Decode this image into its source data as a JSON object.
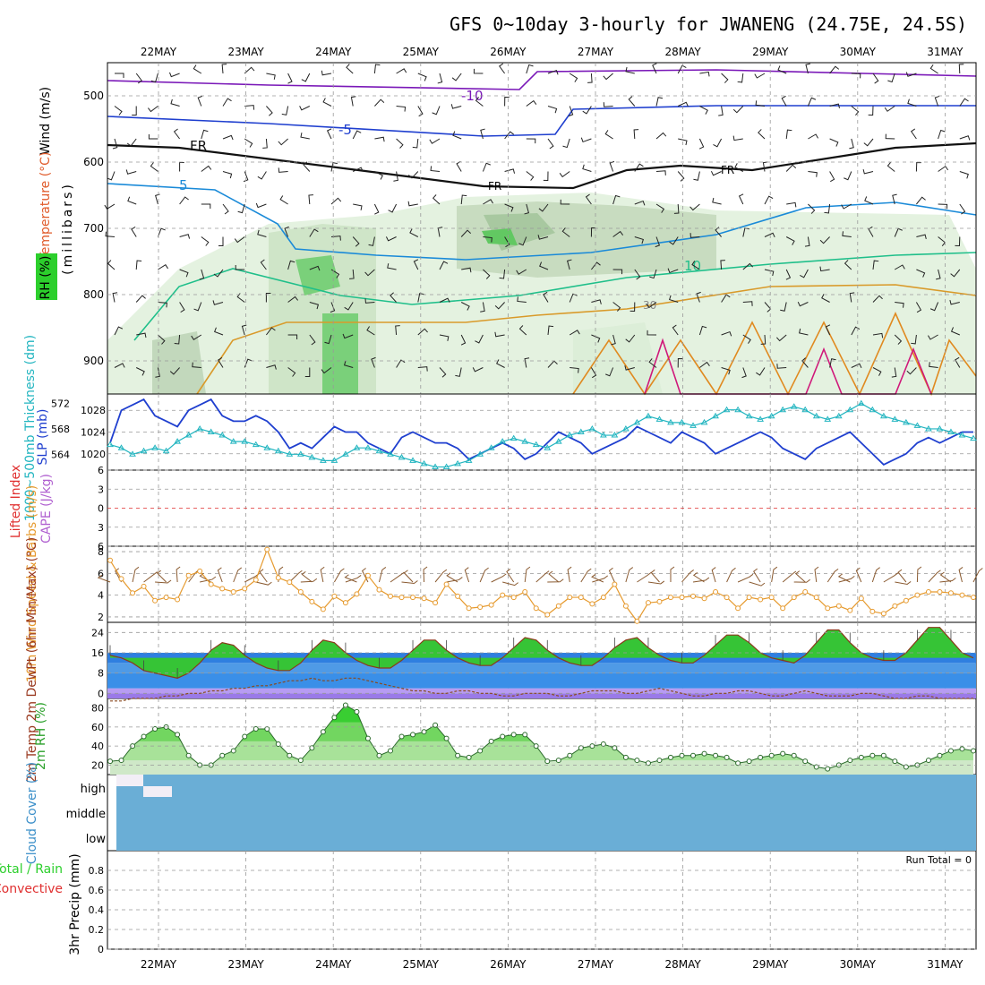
{
  "title": "GFS 0~10day 3-hourly for JWANENG (24.75E, 24.5S)",
  "days": [
    "22MAY",
    "23MAY",
    "24MAY",
    "25MAY",
    "26MAY",
    "27MAY",
    "28MAY",
    "29MAY",
    "30MAY",
    "31MAY"
  ],
  "run_total": "Run Total = 0",
  "colors": {
    "grid": "#999999",
    "temp_line": "#1f3fcf",
    "slp": "#1f3fcf",
    "thick": "#22b5c0",
    "wind": "#e69a2e",
    "rh_green": "#2ccf2c",
    "cloud": "#6aaed6"
  },
  "chart_data": [
    {
      "type": "line",
      "panel": "upper-air",
      "ylabel": "(millibars)",
      "side_labels": [
        "Wind (m/s)",
        "Temperature (°C)",
        "RH (%)"
      ],
      "yticks": [
        500,
        600,
        700,
        800,
        900
      ],
      "ylim": [
        450,
        950
      ],
      "contour_labels": [
        "-10",
        "-5",
        "FR",
        "5",
        "10",
        "0",
        "30"
      ]
    },
    {
      "type": "line",
      "panel": "slp-thickness",
      "ylabel": "SLP (mb)",
      "ylabel2": "1000~500mb Thickness (dm)",
      "yticks_left": [
        564,
        568,
        572
      ],
      "yticks_right": [
        1020,
        1024,
        1028
      ],
      "series": [
        {
          "name": "SLP",
          "values": [
            1022,
            1028,
            1029,
            1030,
            1027,
            1026,
            1025,
            1028,
            1029,
            1030,
            1027,
            1026,
            1026,
            1027,
            1026,
            1024,
            1021,
            1022,
            1021,
            1023,
            1025,
            1024,
            1024,
            1022,
            1021,
            1020,
            1023,
            1024,
            1023,
            1022,
            1022,
            1021,
            1019,
            1020,
            1021,
            1022,
            1021,
            1019,
            1020,
            1022,
            1024,
            1023,
            1022,
            1020,
            1021,
            1022,
            1023,
            1025,
            1024,
            1023,
            1022,
            1024,
            1023,
            1022,
            1020,
            1021,
            1022,
            1023,
            1024,
            1023,
            1021,
            1020,
            1019,
            1021,
            1022,
            1023,
            1024,
            1022,
            1020,
            1018,
            1019,
            1020,
            1022,
            1023,
            1022,
            1023,
            1024,
            1024
          ]
        },
        {
          "name": "Thickness",
          "values": [
            565.5,
            565,
            564,
            564.5,
            565,
            564.5,
            566,
            567,
            568,
            567.5,
            567,
            566,
            566,
            565.5,
            565,
            564.5,
            564,
            564,
            563.5,
            563,
            563,
            564,
            565,
            565,
            564.5,
            564,
            563.5,
            563,
            562.5,
            562,
            562,
            562.5,
            563,
            564,
            565,
            566,
            566.5,
            566,
            565.5,
            565,
            566,
            567,
            567.5,
            568,
            567,
            567,
            568,
            569,
            570,
            569.5,
            569,
            569,
            568.5,
            569,
            570,
            571,
            571,
            570,
            569.5,
            570,
            571,
            571.5,
            571,
            570,
            569.5,
            570,
            571,
            572,
            571,
            570,
            569.5,
            569,
            568.5,
            568,
            568,
            567.5,
            567,
            566.5
          ]
        }
      ]
    },
    {
      "type": "line",
      "panel": "stability",
      "ylabel": "Lifted Index",
      "ylabel2": "CAPE (J/kg)",
      "yticks": [
        -6,
        -3,
        0,
        3,
        6
      ],
      "ylim": [
        -6,
        6
      ],
      "series": [
        {
          "name": "Lifted Index",
          "values": []
        }
      ]
    },
    {
      "type": "line",
      "panel": "10m-wind",
      "ylabel": "10m Wind Speed & Barbs (m/s)",
      "yticks": [
        2,
        4,
        6,
        8
      ],
      "ylim": [
        1.5,
        8.5
      ],
      "series": [
        {
          "name": "10m Wind Speed",
          "values": [
            7.2,
            5.5,
            4.2,
            4.8,
            3.5,
            3.8,
            3.6,
            5.8,
            6.2,
            5.0,
            4.6,
            4.3,
            4.6,
            5.4,
            8.2,
            5.6,
            5.2,
            4.3,
            3.4,
            2.7,
            3.9,
            3.3,
            4.1,
            5.8,
            4.5,
            3.9,
            3.8,
            3.8,
            3.7,
            3.3,
            5.0,
            3.9,
            2.8,
            2.9,
            3.1,
            4.0,
            3.8,
            4.3,
            2.8,
            2.2,
            3.0,
            3.8,
            3.8,
            3.2,
            3.8,
            5.0,
            3.0,
            1.6,
            3.3,
            3.4,
            3.8,
            3.8,
            3.9,
            3.7,
            4.3,
            3.8,
            2.8,
            3.8,
            3.6,
            3.8,
            2.8,
            3.8,
            4.3,
            3.8,
            2.8,
            3.0,
            2.6,
            3.7,
            2.5,
            2.3,
            3.0,
            3.5,
            4.0,
            4.3,
            4.3,
            4.2,
            4.0,
            3.8
          ]
        }
      ]
    },
    {
      "type": "area",
      "panel": "2m-temp",
      "ylabel": "2m Temp 2m DewPt (6hr Min/Max) (°C)",
      "yticks": [
        0,
        8,
        16,
        24
      ],
      "ylim": [
        -2,
        28
      ],
      "series": [
        {
          "name": "2m Temp",
          "values": [
            15,
            14,
            12,
            9,
            8,
            7,
            6,
            8,
            12,
            17,
            20,
            19,
            15,
            12,
            10,
            9,
            9,
            12,
            17,
            21,
            20,
            16,
            13,
            11,
            10,
            10,
            13,
            17,
            21,
            21,
            17,
            14,
            12,
            11,
            11,
            14,
            18,
            22,
            21,
            17,
            14,
            12,
            11,
            11,
            14,
            18,
            21,
            22,
            18,
            15,
            13,
            12,
            12,
            15,
            19,
            23,
            23,
            20,
            16,
            14,
            13,
            12,
            15,
            20,
            25,
            25,
            20,
            16,
            14,
            13,
            13,
            16,
            21,
            26,
            26,
            21,
            16,
            14
          ]
        },
        {
          "name": "2m DewPt",
          "values": [
            -3,
            -3,
            -2,
            -2,
            -2,
            -1,
            -1,
            0,
            0,
            1,
            1,
            2,
            2,
            3,
            3,
            4,
            5,
            5,
            6,
            5,
            5,
            6,
            6,
            5,
            4,
            3,
            2,
            1,
            1,
            0,
            0,
            1,
            1,
            0,
            0,
            -1,
            -1,
            0,
            0,
            0,
            -1,
            -1,
            0,
            1,
            1,
            1,
            0,
            0,
            1,
            2,
            1,
            0,
            -1,
            -1,
            0,
            0,
            1,
            1,
            0,
            -1,
            -1,
            0,
            1,
            0,
            -1,
            -1,
            -1,
            0,
            0,
            -1,
            -2,
            -2,
            -1,
            -1,
            -2,
            -2,
            -2,
            -2
          ]
        }
      ]
    },
    {
      "type": "area",
      "panel": "2m-rh",
      "ylabel": "2m RH (%)",
      "yticks": [
        20,
        40,
        60,
        80
      ],
      "ylim": [
        10,
        90
      ],
      "series": [
        {
          "name": "2m RH",
          "values": [
            24,
            25,
            40,
            50,
            58,
            60,
            52,
            30,
            20,
            20,
            30,
            35,
            50,
            58,
            58,
            42,
            30,
            25,
            38,
            55,
            70,
            83,
            76,
            48,
            30,
            35,
            50,
            52,
            55,
            62,
            48,
            30,
            28,
            35,
            45,
            50,
            52,
            52,
            40,
            24,
            25,
            30,
            38,
            40,
            42,
            38,
            28,
            25,
            22,
            25,
            28,
            30,
            30,
            32,
            30,
            28,
            22,
            24,
            28,
            30,
            32,
            30,
            24,
            18,
            16,
            20,
            25,
            28,
            30,
            30,
            24,
            18,
            20,
            25,
            30,
            35,
            37,
            35
          ]
        }
      ]
    },
    {
      "type": "area",
      "panel": "cloud-cover",
      "ylabel": "Cloud Cover (%)",
      "levels": [
        "high",
        "middle",
        "low"
      ]
    },
    {
      "type": "bar",
      "panel": "precip",
      "ylabel": "3hr Precip (mm)",
      "ylabel2": "Total / Rain Convective",
      "yticks": [
        0,
        0.2,
        0.4,
        0.6,
        0.8
      ],
      "ylim": [
        0,
        1.0
      ],
      "values": []
    }
  ]
}
